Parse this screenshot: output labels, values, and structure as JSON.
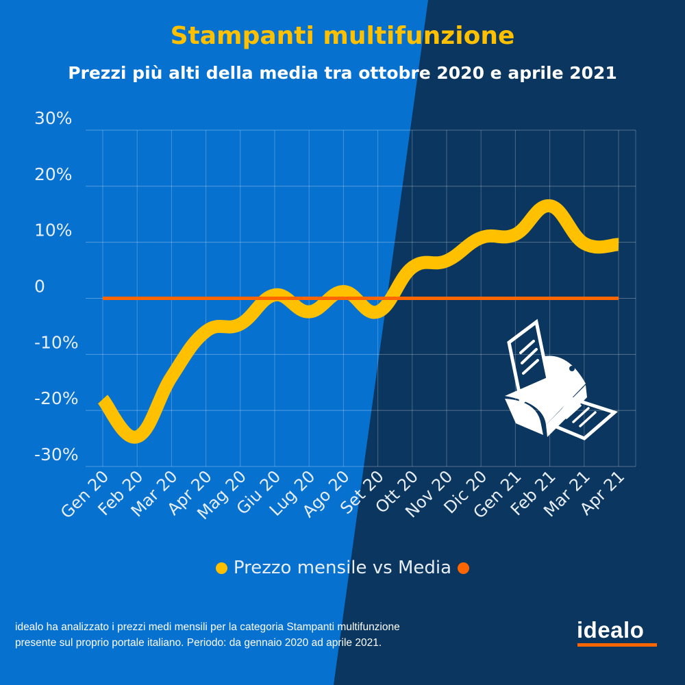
{
  "header": {
    "title": "Stampanti multifunzione",
    "subtitle": "Prezzi più alti della media tra ottobre 2020 e aprile 2021"
  },
  "chart_data": {
    "type": "line",
    "title": "Stampanti multifunzione",
    "subtitle": "Prezzi più alti della media tra ottobre 2020 e aprile 2021",
    "categories": [
      "Gen 20",
      "Feb 20",
      "Mar 20",
      "Apr 20",
      "Mag 20",
      "Giu 20",
      "Lug 20",
      "Ago 20",
      "Set 20",
      "Ott 20",
      "Nov 20",
      "Dic 20",
      "Gen 21",
      "Feb 21",
      "Mar 21",
      "Apr 21"
    ],
    "series": [
      {
        "name": "Prezzo mensile vs Media",
        "color": "#ffc000",
        "values": [
          -18,
          -24.7,
          -14,
          -5.9,
          -4.6,
          0.6,
          -2.4,
          1.2,
          -2.4,
          5.5,
          6.7,
          10.8,
          11.4,
          16.5,
          9.8,
          9.6
        ]
      },
      {
        "name": "Media",
        "color": "#ff6600",
        "values": [
          0,
          0,
          0,
          0,
          0,
          0,
          0,
          0,
          0,
          0,
          0,
          0,
          0,
          0,
          0,
          0
        ]
      }
    ],
    "yticks": [
      30,
      20,
      10,
      0,
      -10,
      -20,
      -30
    ],
    "ytick_labels": [
      "30%",
      "20%",
      "10%",
      "0",
      "-10%",
      "-20%",
      "-30%"
    ],
    "ylim": [
      -30,
      30
    ],
    "grid": true,
    "legend_position": "bottom",
    "legend": [
      "Prezzo mensile vs Media"
    ]
  },
  "colors": {
    "blue": "#0771d0",
    "navy": "#0b365f",
    "yellow": "#ffc000",
    "orange": "#ff6600"
  },
  "footer": {
    "line1": "idealo ha analizzato i prezzi medi mensili per la categoria Stampanti multifunzione",
    "line2": "presente sul proprio portale italiano. Periodo: da gennaio 2020 ad aprile 2021."
  },
  "logo": {
    "text": "idealo"
  }
}
